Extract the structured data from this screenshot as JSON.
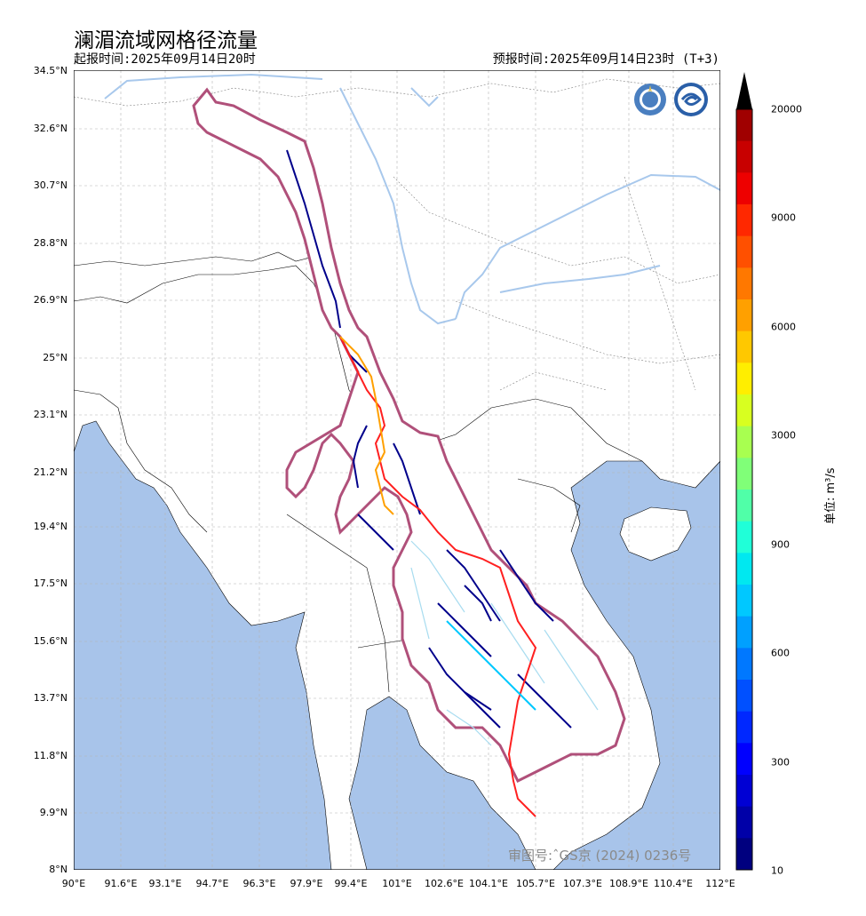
{
  "title": "澜湄流域网格径流量",
  "issue_time": "起报时间:2025年09月14日20时",
  "forecast_time": "预报时间:2025年09月14日23时 (T+3)",
  "map_approval": "审图号:ˆGS京 (2024) 0236号",
  "lat_labels": [
    "34.5°N",
    "32.6°N",
    "30.7°N",
    "28.8°N",
    "26.9°N",
    "25°N",
    "23.1°N",
    "21.2°N",
    "19.4°N",
    "17.5°N",
    "15.6°N",
    "13.7°N",
    "11.8°N",
    "9.9°N",
    "8°N"
  ],
  "lon_labels": [
    "90°E",
    "91.6°E",
    "93.1°E",
    "94.7°E",
    "96.3°E",
    "97.9°E",
    "99.4°E",
    "101°E",
    "102.6°E",
    "104.1°E",
    "105.7°E",
    "107.3°E",
    "108.9°E",
    "110.4°E",
    "112°E"
  ],
  "colorbar": {
    "labels": [
      "20000",
      "9000",
      "6000",
      "3000",
      "900",
      "600",
      "300",
      "10"
    ],
    "unit": "单位: m³/s",
    "colors": [
      "#00007f",
      "#0000a8",
      "#0000d4",
      "#0000ff",
      "#0028ff",
      "#0050ff",
      "#0078ff",
      "#00a0ff",
      "#00c8ff",
      "#00e8f0",
      "#20ffd8",
      "#50ffa8",
      "#80ff78",
      "#a8ff50",
      "#d8ff20",
      "#ffee00",
      "#ffc800",
      "#ffa000",
      "#ff7800",
      "#ff5000",
      "#ff2800",
      "#ee0000",
      "#c80000",
      "#a00000"
    ]
  },
  "colors": {
    "ocean": "#a8c4ea",
    "land": "#ffffff",
    "basin_outline": "#b0507a",
    "river_light": "#a8c8ec",
    "main_channel": "#ff2020"
  },
  "icons": [
    "wmo-logo-icon",
    "cma-logo-icon"
  ]
}
